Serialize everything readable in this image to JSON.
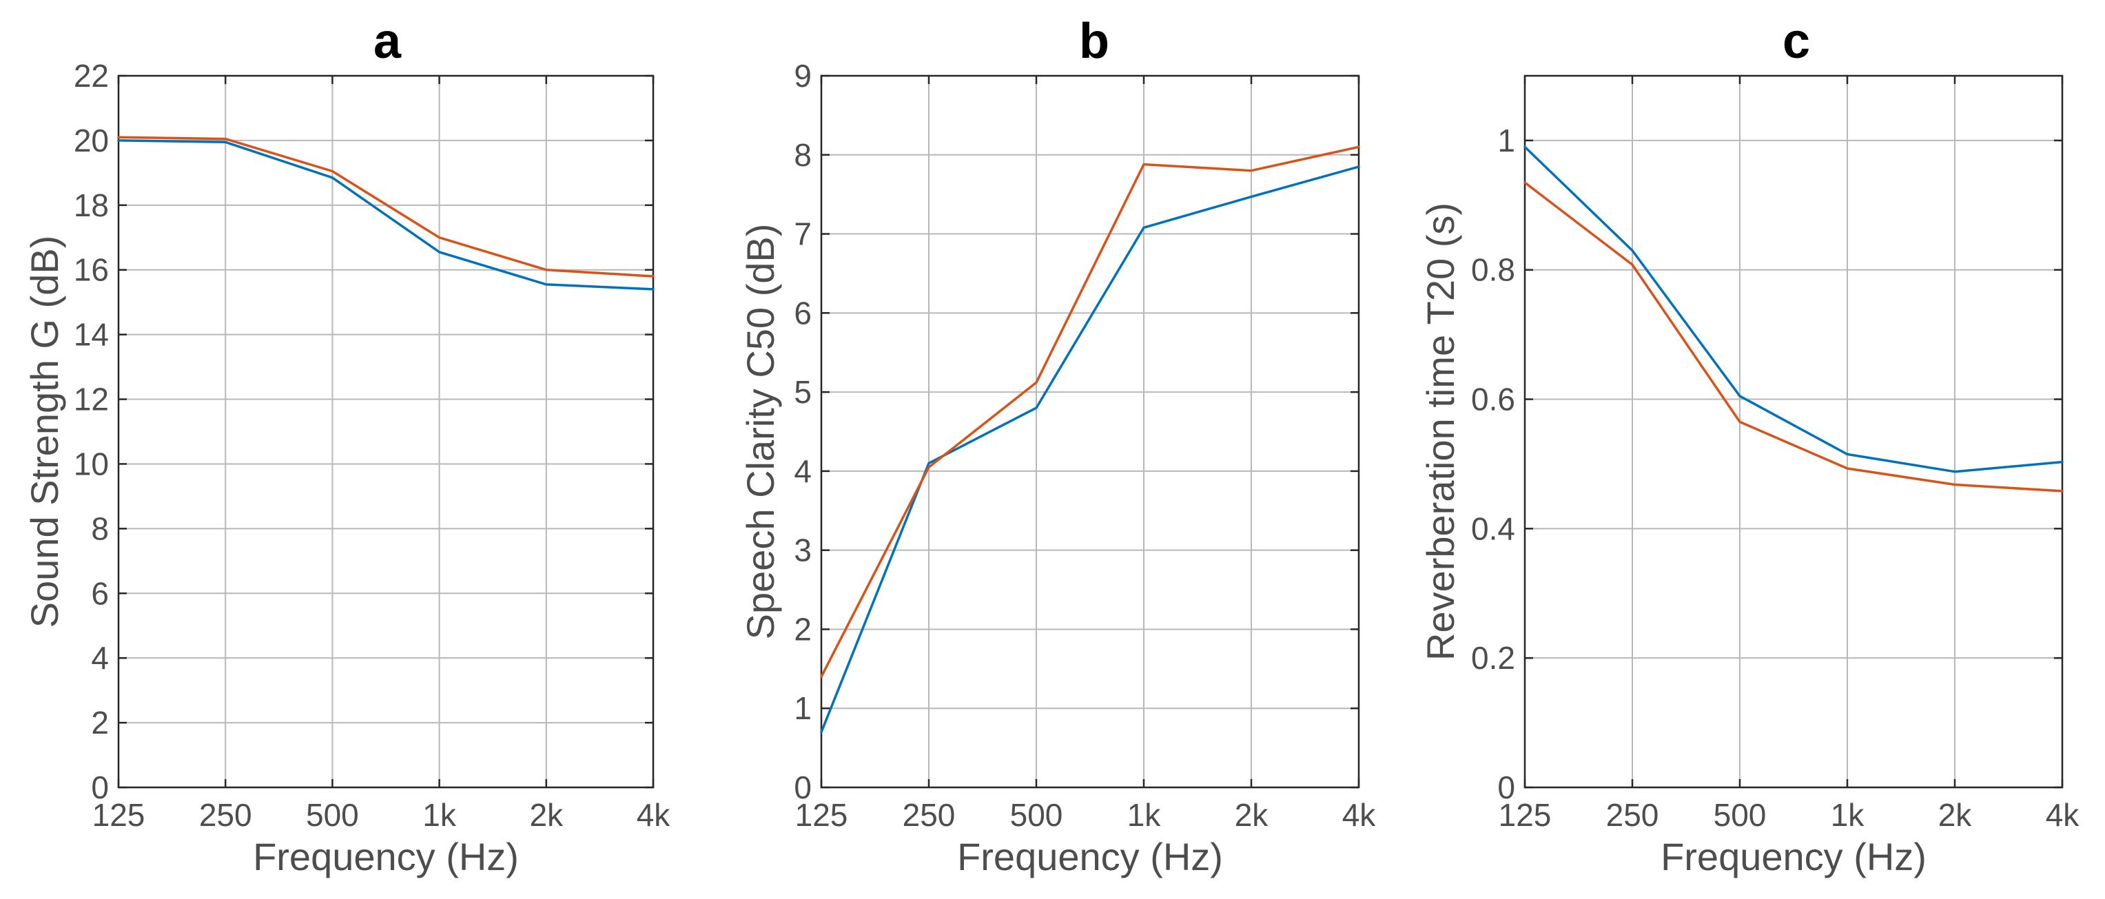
{
  "chart_data": [
    {
      "type": "line",
      "title": "a",
      "xlabel": "Frequency (Hz)",
      "ylabel": "Sound Strength G (dB)",
      "categories": [
        "125",
        "250",
        "500",
        "1k",
        "2k",
        "4k"
      ],
      "ylim": [
        0,
        22
      ],
      "yticks": [
        0,
        2,
        4,
        6,
        8,
        10,
        12,
        14,
        16,
        18,
        20,
        22
      ],
      "grid": true,
      "series": [
        {
          "name": "blue series",
          "color": "#0072bd",
          "values": [
            20.0,
            19.95,
            18.85,
            16.55,
            15.55,
            15.4
          ]
        },
        {
          "name": "orange series",
          "color": "#d95319",
          "values": [
            20.1,
            20.05,
            19.05,
            17.0,
            16.0,
            15.8
          ]
        }
      ]
    },
    {
      "type": "line",
      "title": "b",
      "xlabel": "Frequency (Hz)",
      "ylabel": "Speech Clarity C50 (dB)",
      "categories": [
        "125",
        "250",
        "500",
        "1k",
        "2k",
        "4k"
      ],
      "ylim": [
        0,
        9
      ],
      "yticks": [
        0,
        1,
        2,
        3,
        4,
        5,
        6,
        7,
        8,
        9
      ],
      "grid": true,
      "series": [
        {
          "name": "blue series",
          "color": "#0072bd",
          "values": [
            0.7,
            4.1,
            4.8,
            7.08,
            7.47,
            7.85
          ]
        },
        {
          "name": "orange series",
          "color": "#d95319",
          "values": [
            1.4,
            4.05,
            5.12,
            7.88,
            7.8,
            8.1
          ]
        }
      ]
    },
    {
      "type": "line",
      "title": "c",
      "xlabel": "Frequency (Hz)",
      "ylabel": "Reverberation time T20 (s)",
      "categories": [
        "125",
        "250",
        "500",
        "1k",
        "2k",
        "4k"
      ],
      "ylim": [
        0,
        1.1
      ],
      "yticks": [
        0,
        0.2,
        0.4,
        0.6,
        0.8,
        1
      ],
      "grid": true,
      "series": [
        {
          "name": "blue series",
          "color": "#0072bd",
          "values": [
            0.99,
            0.83,
            0.605,
            0.515,
            0.488,
            0.503
          ]
        },
        {
          "name": "orange series",
          "color": "#d95319",
          "values": [
            0.935,
            0.808,
            0.565,
            0.493,
            0.468,
            0.458
          ]
        }
      ]
    }
  ]
}
